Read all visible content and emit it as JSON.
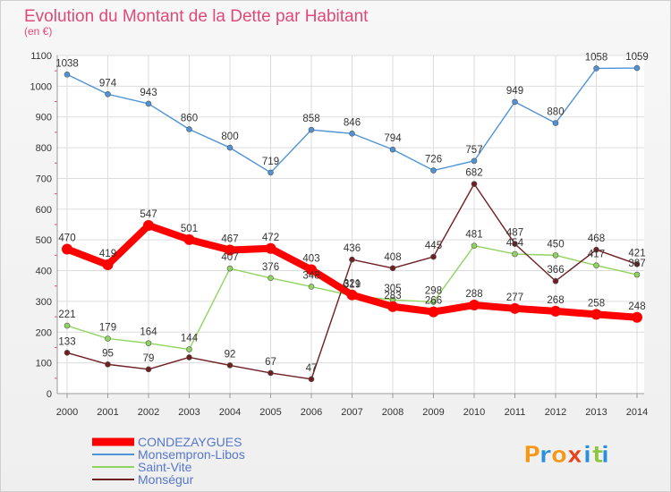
{
  "chart_data": {
    "type": "line",
    "title": "Evolution du Montant de la Dette par Habitant",
    "subtitle": "(en €)",
    "xlabel": "",
    "ylabel": "",
    "categories": [
      "2000",
      "2001",
      "2002",
      "2003",
      "2004",
      "2005",
      "2006",
      "2007",
      "2008",
      "2009",
      "2010",
      "2011",
      "2012",
      "2013",
      "2014"
    ],
    "ylim": [
      0,
      1100
    ],
    "yticks": [
      0,
      100,
      200,
      300,
      400,
      500,
      600,
      700,
      800,
      900,
      1000,
      1100
    ],
    "grid": true,
    "legend_position": "bottom-left",
    "series": [
      {
        "name": "CONDEZAYGUES",
        "color": "#ff0000",
        "values": [
          470,
          419,
          547,
          501,
          467,
          472,
          403,
          321,
          283,
          266,
          288,
          277,
          268,
          258,
          248
        ]
      },
      {
        "name": "Monsempron-Libos",
        "color": "#4f93d6",
        "values": [
          1038,
          974,
          943,
          860,
          800,
          719,
          858,
          846,
          794,
          726,
          757,
          949,
          880,
          1058,
          1059
        ]
      },
      {
        "name": "Saint-Vite",
        "color": "#90d460",
        "values": [
          221,
          179,
          164,
          144,
          407,
          376,
          348,
          319,
          305,
          298,
          481,
          454,
          450,
          417,
          387
        ]
      },
      {
        "name": "Monségur",
        "color": "#6e1f22",
        "values": [
          133,
          95,
          79,
          118,
          92,
          67,
          47,
          436,
          408,
          445,
          682,
          487,
          366,
          468,
          421
        ]
      }
    ],
    "data_labels": {
      "CONDEZAYGUES": [
        "470",
        "419",
        "547",
        "501",
        "467",
        "472",
        "403",
        "321",
        "283",
        "266",
        "288",
        "277",
        "268",
        "258",
        "248"
      ],
      "Monsempron-Libos": [
        "1038",
        "974",
        "943",
        "860",
        "800",
        "719",
        "858",
        "846",
        "794",
        "726",
        "757",
        "949",
        "880",
        "1058",
        "1059"
      ],
      "Saint-Vite": [
        "221",
        "179",
        "164",
        "144",
        "407",
        "376",
        "348",
        "319",
        "305",
        "298",
        "481",
        "454",
        "450",
        "417",
        "387"
      ],
      "Monségur": [
        "133",
        "95",
        "79",
        "",
        "92",
        "67",
        "47",
        "436",
        "408",
        "445",
        "682",
        "487",
        "366",
        "468",
        "421"
      ]
    }
  },
  "brand": {
    "text": "Proxiti",
    "colors": [
      "#f39a1e",
      "#2a8fd8",
      "#f39a1e",
      "#e8431c",
      "#2a8fd8",
      "#8dc63f",
      "#2a8fd8"
    ]
  }
}
